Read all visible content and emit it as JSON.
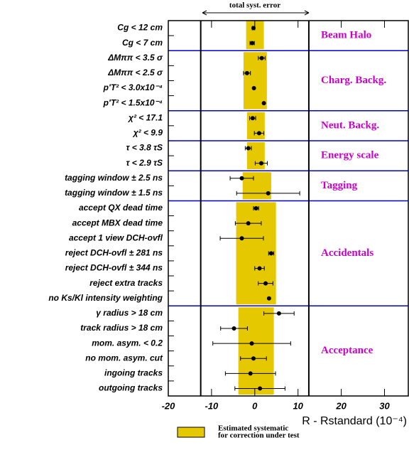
{
  "chart_data": {
    "type": "errorbar",
    "annotation": "total syst. error",
    "xlabel": "R - Rstandard (10⁻⁴)",
    "band_label": [
      "Estimated systematic",
      "for correction under test"
    ],
    "band_color": "#e6c800",
    "line_color": "#0000cc",
    "group_color": "#cc00cc",
    "xlim": [
      -20,
      35.5
    ],
    "xticks": [
      -20,
      -10,
      0,
      10,
      20,
      30
    ],
    "total_error": [
      -12.5,
      12.5
    ],
    "groups": [
      {
        "name": "Beam Halo",
        "band": [
          -2,
          2.1
        ],
        "categories": [
          "Cg < 12 cm",
          "Cg < 7 cm"
        ],
        "values": [
          -0.3,
          -0.6
        ],
        "errors": [
          0.3,
          0.5
        ]
      },
      {
        "name": "Charg. Backg.",
        "band": [
          -2.6,
          2.8
        ],
        "categories": [
          "ΔMππ < 3.5 σ",
          "ΔMππ < 2.5 σ",
          "p'T² < 3.0x10⁻⁴",
          "p'T² < 1.5x10⁻⁴"
        ],
        "values": [
          1.6,
          -1.8,
          -0.2,
          2.1
        ],
        "errors": [
          0.8,
          0.8,
          0,
          0
        ]
      },
      {
        "name": "Neut. Backg.",
        "band": [
          -1.8,
          2.3
        ],
        "categories": [
          "χ² < 17.1",
          "χ² < 9.9"
        ],
        "values": [
          -0.5,
          1.0
        ],
        "errors": [
          0.7,
          1.1
        ]
      },
      {
        "name": "Energy scale",
        "band": [
          -1.8,
          2.3
        ],
        "categories": [
          "τ < 3.8 τS",
          "τ < 2.9 τS"
        ],
        "values": [
          -1.5,
          1.5
        ],
        "errors": [
          0.7,
          1.4
        ]
      },
      {
        "name": "Tagging",
        "band": [
          -2.8,
          3.8
        ],
        "categories": [
          "tagging window ± 2.5 ns",
          "tagging window ± 1.5 ns"
        ],
        "values": [
          -3,
          3.1
        ],
        "errors": [
          2.7,
          7.3
        ]
      },
      {
        "name": "Accidentals",
        "band": [
          -4.3,
          4.9
        ],
        "categories": [
          "accept QX dead time",
          "accept MBX dead time",
          "accept 1 view DCH-ovfl",
          "reject DCH-ovfl ± 281 ns",
          "reject DCH-ovfl ± 344 ns",
          "reject extra tracks",
          "no Ks/Kl intensity weighting"
        ],
        "values": [
          0.3,
          -1.5,
          -3,
          3.8,
          1.1,
          2.5,
          3.3
        ],
        "errors": [
          0.6,
          3,
          5,
          0.6,
          1.1,
          1.7,
          0
        ]
      },
      {
        "name": "Acceptance",
        "band": [
          -3.8,
          4.4
        ],
        "categories": [
          "γ radius > 18 cm",
          "track radius > 18 cm",
          "mom. asym. < 0.2",
          "no mom. asym. cut",
          "ingoing tracks",
          "outgoing tracks"
        ],
        "values": [
          5.6,
          -4.8,
          -0.7,
          -0.3,
          -1,
          1.2
        ],
        "errors": [
          3.5,
          3.1,
          9,
          3,
          5.8,
          5.8
        ]
      }
    ]
  }
}
